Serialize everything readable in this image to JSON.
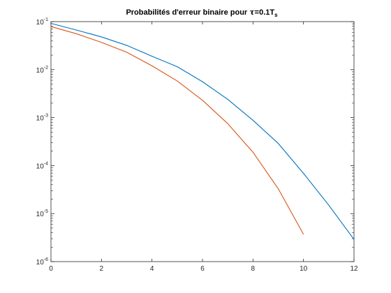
{
  "chart_data": {
    "type": "line",
    "title": {
      "prefix": "Probabilités d'erreur binaire pour ",
      "tau": "τ",
      "mid": "=0.1T",
      "sub": "s"
    },
    "xlabel": "",
    "ylabel": "",
    "xlim": [
      0,
      12
    ],
    "ylim": [
      1e-06,
      0.1
    ],
    "yscale": "log",
    "grid": false,
    "legend": "none",
    "x_ticks": [
      0,
      2,
      4,
      6,
      8,
      10,
      12
    ],
    "y_ticks": [
      {
        "value": 1e-06,
        "base": "10",
        "exp": "-6"
      },
      {
        "value": 1e-05,
        "base": "10",
        "exp": "-5"
      },
      {
        "value": 0.0001,
        "base": "10",
        "exp": "-4"
      },
      {
        "value": 0.001,
        "base": "10",
        "exp": "-3"
      },
      {
        "value": 0.01,
        "base": "10",
        "exp": "-2"
      },
      {
        "value": 0.1,
        "base": "10",
        "exp": "-1"
      }
    ],
    "series": [
      {
        "color": "#0072bd",
        "x": [
          0,
          1,
          2,
          3,
          4,
          5,
          6,
          7,
          8,
          9,
          10,
          11,
          12
        ],
        "y": [
          0.092,
          0.067,
          0.048,
          0.032,
          0.019,
          0.0115,
          0.0056,
          0.0024,
          0.00088,
          0.00029,
          6.9e-05,
          1.5e-05,
          2.9e-06
        ]
      },
      {
        "color": "#d95319",
        "x": [
          0,
          1,
          2,
          3,
          4,
          5,
          6,
          7,
          8,
          9,
          10
        ],
        "y": [
          0.079,
          0.056,
          0.037,
          0.023,
          0.012,
          0.0058,
          0.0023,
          0.00075,
          0.00019,
          3.3e-05,
          3.7e-06
        ]
      }
    ]
  }
}
